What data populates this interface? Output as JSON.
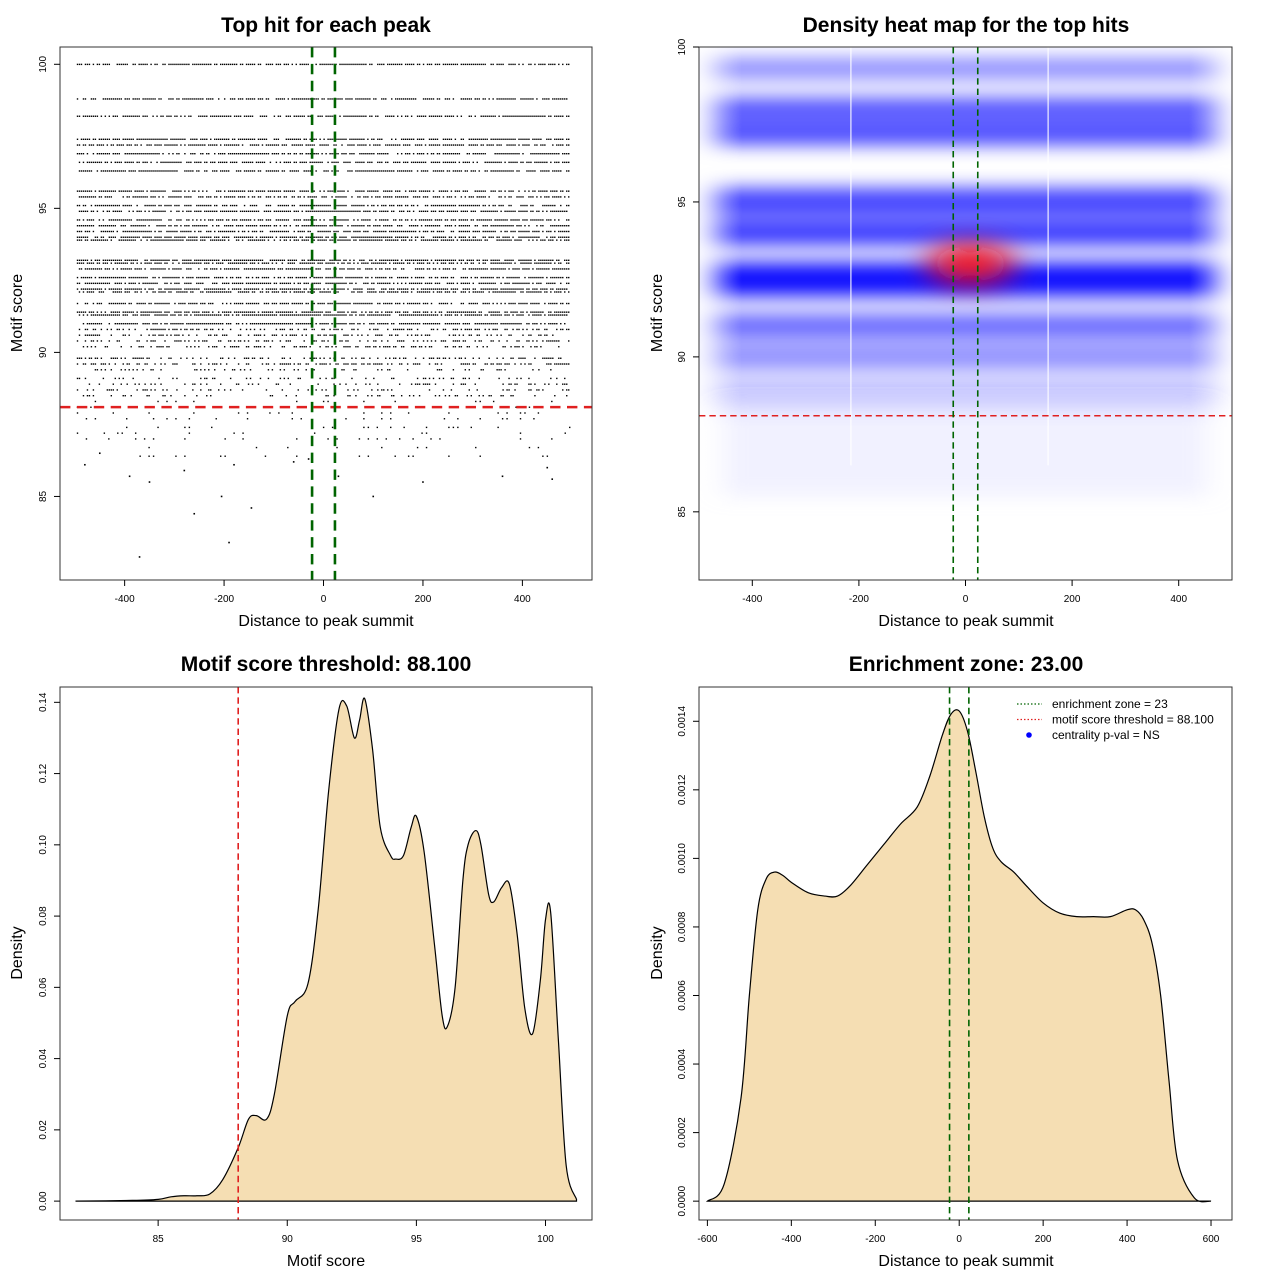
{
  "chart_data": [
    {
      "type": "scatter",
      "title": "Top hit for each peak",
      "xlabel": "Distance to peak summit",
      "ylabel": "Motif score",
      "xlim": [
        -530,
        540
      ],
      "ylim": [
        82.1,
        100.6
      ],
      "xticks": [
        -400,
        -200,
        0,
        200,
        400
      ],
      "yticks": [
        85,
        90,
        95,
        100
      ],
      "dense_rows": [
        100,
        98.8,
        98.2,
        97.4,
        97.2,
        96.9,
        96.6,
        96.3,
        95.6,
        95.4,
        95.1,
        94.9,
        94.6,
        94.4,
        94.2,
        94.0,
        93.9,
        93.2,
        93.1,
        92.9,
        92.6,
        92.4,
        92.2,
        92.1,
        91.7,
        91.4,
        91.3,
        91.0,
        90.8,
        90.6,
        90.4,
        90.2,
        89.8,
        89.6,
        89.4,
        89.1,
        88.9,
        88.7,
        88.5
      ],
      "sparse_rows": [
        88.3,
        88.1,
        87.9,
        87.7,
        87.4,
        87.2,
        87.0,
        86.7,
        86.4
      ],
      "outliers": [
        [
          -370,
          82.9
        ],
        [
          -190,
          83.4
        ],
        [
          -260,
          84.4
        ],
        [
          -145,
          84.6
        ],
        [
          -205,
          85.0
        ],
        [
          100,
          85.0
        ],
        [
          -390,
          85.7
        ],
        [
          -350,
          85.5
        ],
        [
          -280,
          85.9
        ],
        [
          -180,
          86.1
        ],
        [
          -60,
          86.2
        ],
        [
          -480,
          86.1
        ],
        [
          30,
          85.7
        ],
        [
          200,
          85.5
        ],
        [
          360,
          85.7
        ],
        [
          460,
          85.6
        ],
        [
          450,
          86.0
        ],
        [
          -450,
          86.5
        ],
        [
          -30,
          86.3
        ]
      ],
      "hlines": [
        {
          "y": 88.1,
          "color": "#e02020"
        }
      ],
      "vlines": [
        {
          "x": -23,
          "color": "#006400"
        },
        {
          "x": 23,
          "color": "#006400"
        }
      ]
    },
    {
      "type": "heatmap",
      "title": "Density heat map for the top hits",
      "xlabel": "Distance to peak summit",
      "ylabel": "Motif score",
      "xlim": [
        -500,
        500
      ],
      "ylim": [
        82.8,
        100
      ],
      "xticks": [
        -400,
        -200,
        0,
        200,
        400
      ],
      "yticks": [
        85,
        90,
        95,
        100
      ],
      "bands": [
        {
          "y": 99.3,
          "intensity": 0.45,
          "sd": 0.35
        },
        {
          "y": 98.0,
          "intensity": 0.7,
          "sd": 0.35
        },
        {
          "y": 97.2,
          "intensity": 0.75,
          "sd": 0.35
        },
        {
          "y": 95.0,
          "intensity": 0.75,
          "sd": 0.45
        },
        {
          "y": 94.0,
          "intensity": 0.8,
          "sd": 0.4
        },
        {
          "y": 92.5,
          "intensity": 0.95,
          "sd": 0.55
        },
        {
          "y": 91.0,
          "intensity": 0.6,
          "sd": 0.4
        },
        {
          "y": 90.0,
          "intensity": 0.45,
          "sd": 0.4
        },
        {
          "y": 88.8,
          "intensity": 0.25,
          "sd": 0.5
        }
      ],
      "hot_spot": {
        "x": 0,
        "y": 93.0
      },
      "white_lines_x": [
        -215,
        155
      ],
      "hlines": [
        {
          "y": 88.1,
          "color": "#e02020"
        }
      ],
      "vlines": [
        {
          "x": -23,
          "color": "#006400"
        },
        {
          "x": 23,
          "color": "#006400"
        }
      ]
    },
    {
      "type": "area",
      "title": "Motif score threshold: 88.100",
      "xlabel": "Motif score",
      "ylabel": "Density",
      "xlim": [
        81.2,
        101.8
      ],
      "ylim": [
        -0.0053,
        0.1443
      ],
      "xticks": [
        85,
        90,
        95,
        100
      ],
      "yticks": [
        0.0,
        0.02,
        0.04,
        0.06,
        0.08,
        0.1,
        0.12,
        0.14
      ],
      "ytick_labels": [
        "0.00",
        "0.02",
        "0.04",
        "0.06",
        "0.08",
        "0.10",
        "0.12",
        "0.14"
      ],
      "x": [
        81.8,
        84.0,
        85.0,
        85.5,
        86.0,
        86.5,
        87.0,
        87.5,
        88.1,
        88.5,
        88.8,
        89.2,
        89.5,
        90.0,
        90.3,
        90.8,
        91.2,
        91.6,
        92.0,
        92.3,
        92.6,
        92.8,
        93.0,
        93.3,
        93.6,
        94.0,
        94.2,
        94.5,
        94.8,
        95.0,
        95.3,
        95.7,
        96.0,
        96.2,
        96.5,
        96.8,
        97.0,
        97.3,
        97.5,
        97.8,
        98.0,
        98.3,
        98.6,
        98.9,
        99.2,
        99.5,
        99.8,
        100.0,
        100.2,
        100.5,
        100.8,
        101.2
      ],
      "y": [
        0.0,
        0.0002,
        0.0005,
        0.0012,
        0.0015,
        0.0015,
        0.002,
        0.006,
        0.015,
        0.023,
        0.024,
        0.023,
        0.03,
        0.052,
        0.056,
        0.061,
        0.082,
        0.115,
        0.138,
        0.139,
        0.13,
        0.135,
        0.141,
        0.127,
        0.105,
        0.097,
        0.096,
        0.097,
        0.105,
        0.108,
        0.098,
        0.072,
        0.052,
        0.049,
        0.06,
        0.09,
        0.1,
        0.104,
        0.1,
        0.086,
        0.084,
        0.088,
        0.089,
        0.075,
        0.054,
        0.047,
        0.062,
        0.079,
        0.081,
        0.045,
        0.01,
        0.0005
      ],
      "vlines": [
        {
          "x": 88.1,
          "color": "#e02020"
        }
      ],
      "fill": "#f5deb3"
    },
    {
      "type": "area",
      "title": "Enrichment zone: 23.00",
      "xlabel": "Distance to peak summit",
      "ylabel": "Density",
      "xlim": [
        -620,
        650
      ],
      "ylim": [
        -5.5e-05,
        0.0015
      ],
      "xticks": [
        -600,
        -400,
        -200,
        0,
        200,
        400,
        600
      ],
      "yticks": [
        0,
        0.0002,
        0.0004,
        0.0006,
        0.0008,
        0.001,
        0.0012,
        0.0014
      ],
      "ytick_labels": [
        "0.0000",
        "0.0002",
        "0.0004",
        "0.0006",
        "0.0008",
        "0.0010",
        "0.0012",
        "0.0014"
      ],
      "x": [
        -600,
        -560,
        -520,
        -500,
        -480,
        -460,
        -440,
        -420,
        -400,
        -360,
        -320,
        -290,
        -260,
        -220,
        -180,
        -140,
        -100,
        -70,
        -40,
        -20,
        0,
        20,
        40,
        60,
        80,
        100,
        130,
        160,
        200,
        240,
        280,
        320,
        360,
        400,
        420,
        440,
        460,
        480,
        500,
        520,
        560,
        600
      ],
      "y": [
        0.0,
        5e-05,
        0.0003,
        0.0006,
        0.00085,
        0.00094,
        0.00096,
        0.00095,
        0.00093,
        0.0009,
        0.00089,
        0.00089,
        0.00092,
        0.00098,
        0.00104,
        0.0011,
        0.00115,
        0.00124,
        0.00136,
        0.00142,
        0.00143,
        0.00137,
        0.00125,
        0.00112,
        0.00103,
        0.00099,
        0.00096,
        0.00092,
        0.00087,
        0.00084,
        0.00083,
        0.00083,
        0.00083,
        0.00085,
        0.00085,
        0.00082,
        0.00075,
        0.0006,
        0.00035,
        0.00012,
        1e-05,
        0.0
      ],
      "vlines": [
        {
          "x": -23,
          "color": "#006400"
        },
        {
          "x": 23,
          "color": "#006400"
        }
      ],
      "fill": "#f5deb3",
      "legend_position": "top-right",
      "legend": [
        {
          "label": "enrichment zone = 23",
          "color": "#006400",
          "style": "dotted"
        },
        {
          "label": "motif score threshold = 88.100",
          "color": "#e02020",
          "style": "dotted"
        },
        {
          "label": "centrality p-val = NS",
          "color": "#0000ff",
          "style": "point"
        }
      ]
    }
  ]
}
